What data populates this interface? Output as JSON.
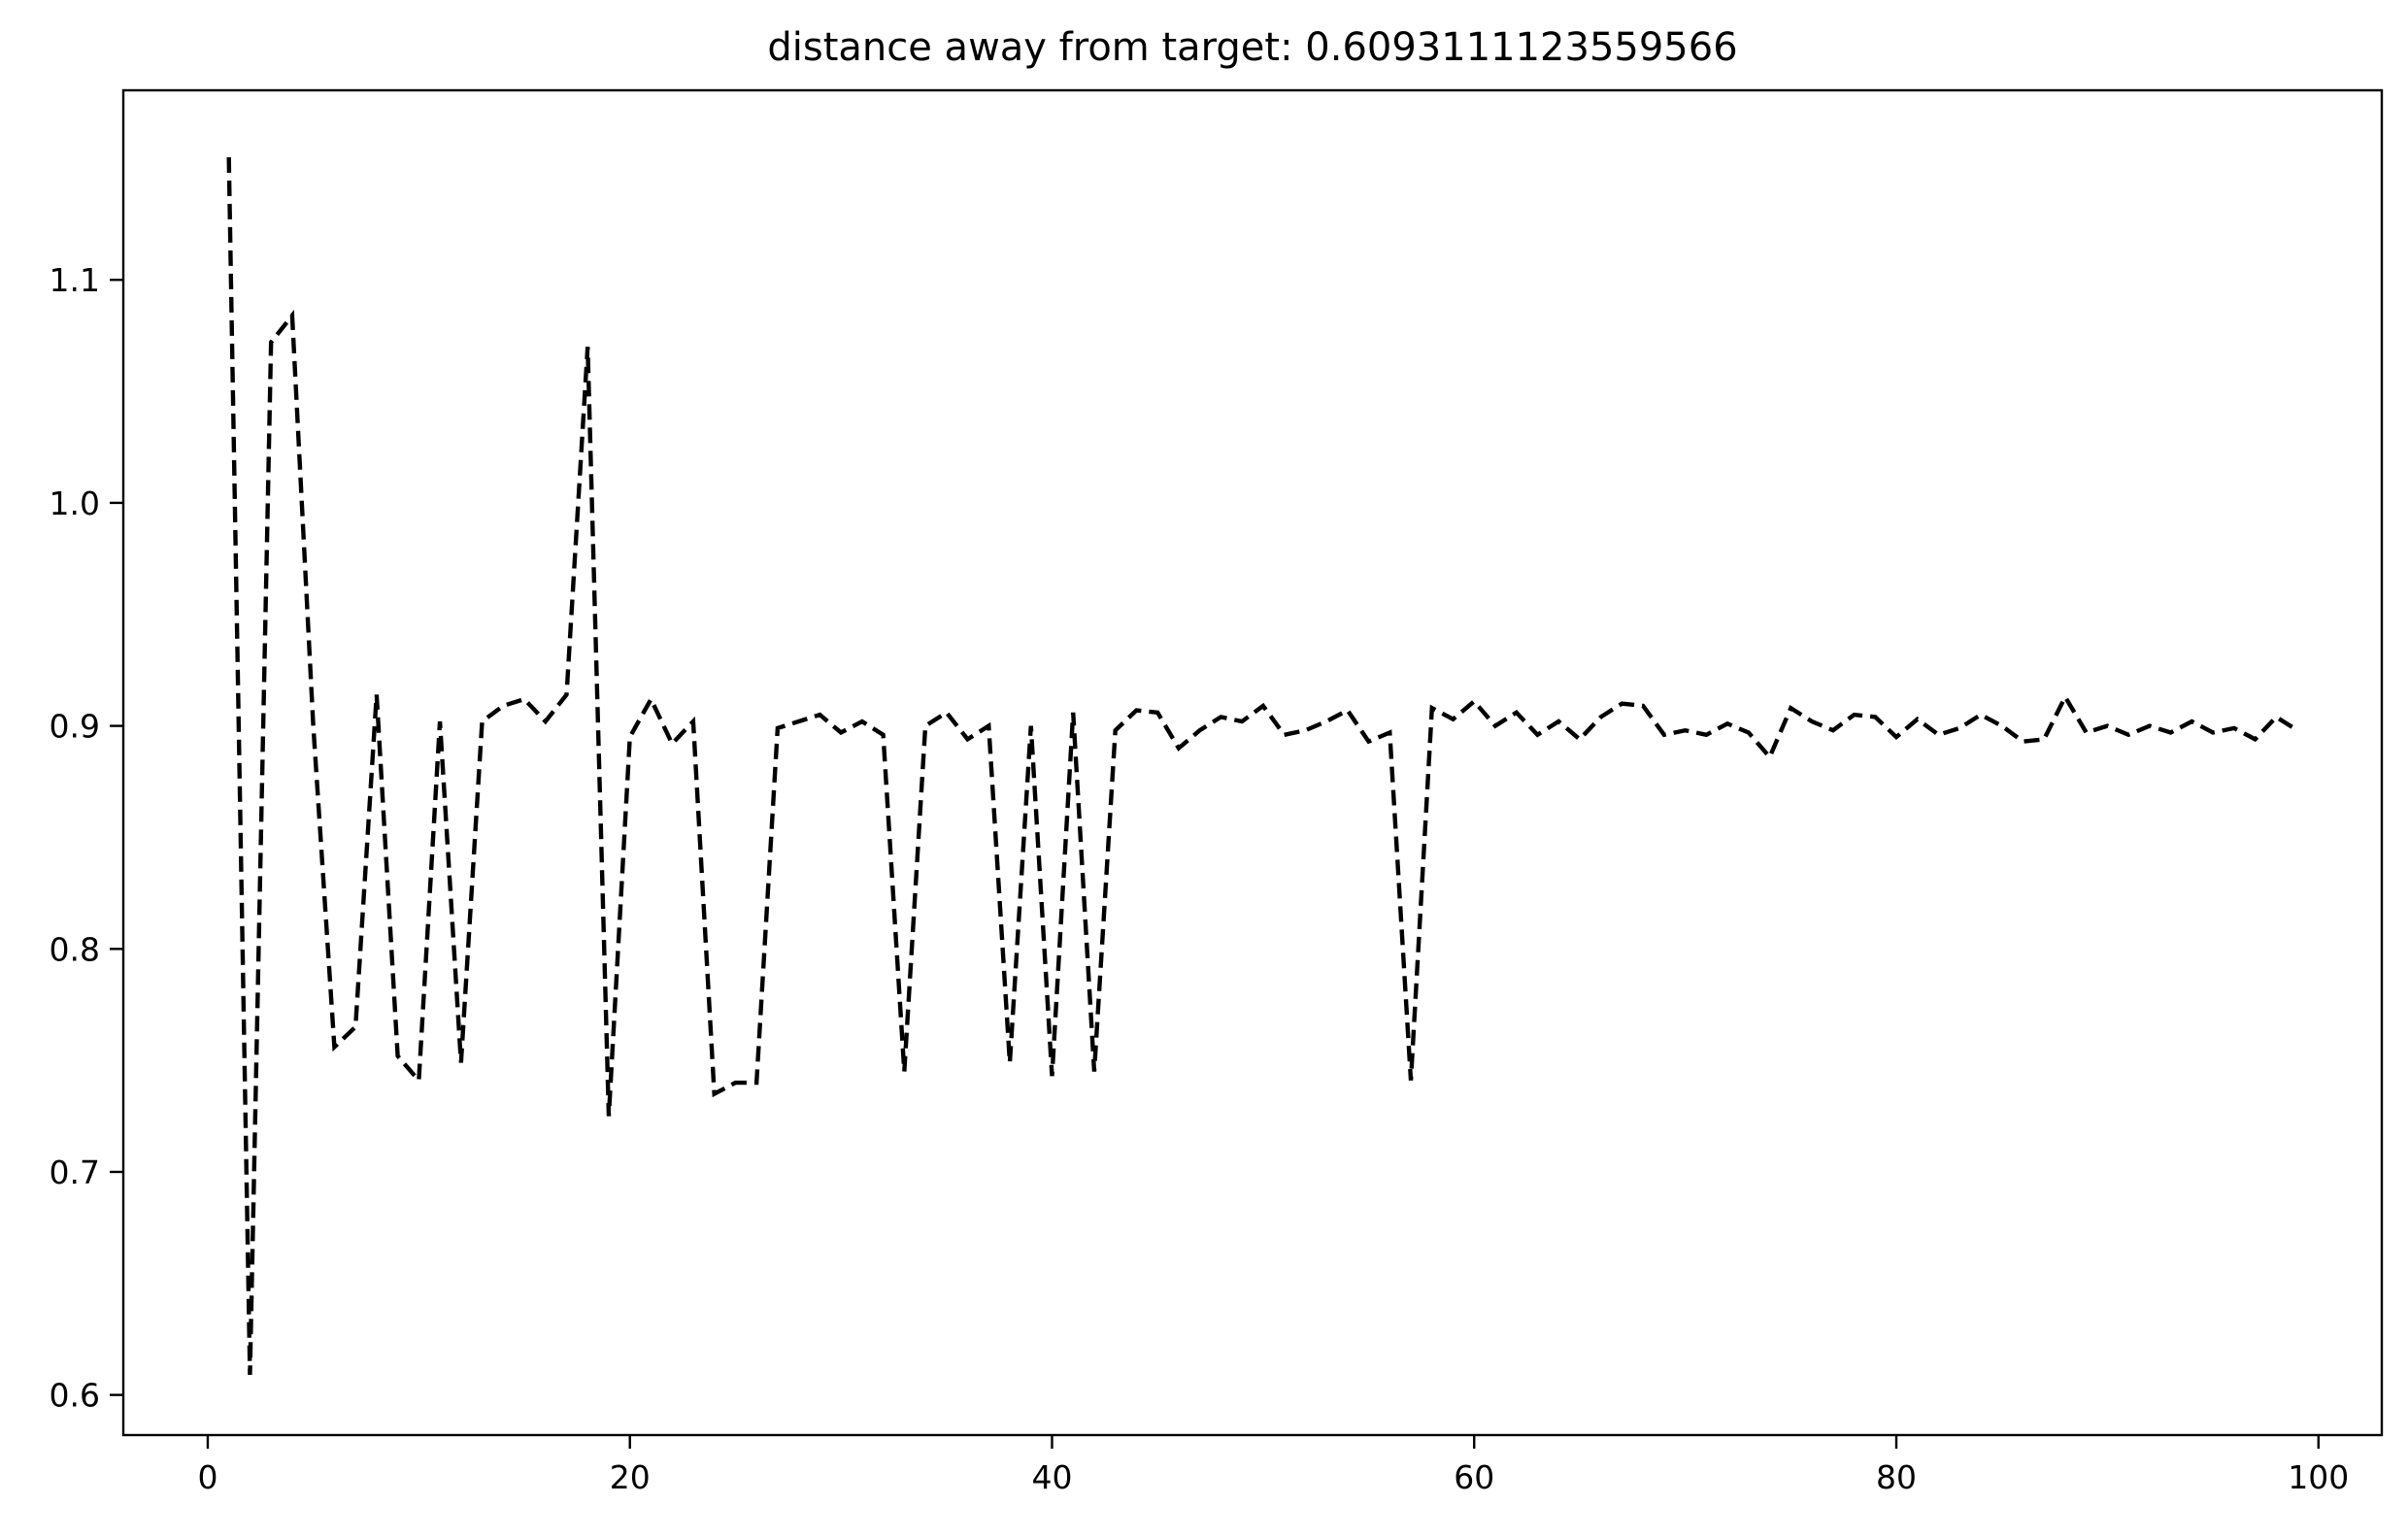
{
  "chart_data": {
    "type": "line",
    "title": "distance away from target: 0.6093111123559566",
    "xlabel": "",
    "ylabel": "",
    "xlim": [
      -4,
      103
    ],
    "ylim": [
      0.582,
      1.185
    ],
    "x_ticks": [
      0,
      20,
      40,
      60,
      80,
      100
    ],
    "y_ticks": [
      0.6,
      0.7,
      0.8,
      0.9,
      1.0,
      1.1
    ],
    "x_tick_labels": [
      "0",
      "20",
      "40",
      "60",
      "80",
      "100"
    ],
    "y_tick_labels": [
      "0.6",
      "0.7",
      "0.8",
      "0.9",
      "1.0",
      "1.1"
    ],
    "grid": false,
    "legend": false,
    "line_color": "#000000",
    "line_style": "dashed",
    "series": [
      {
        "x": [
          1,
          2,
          3,
          4,
          5,
          6,
          7,
          8,
          9,
          10,
          11,
          12,
          13,
          14,
          15,
          16,
          17,
          18,
          19,
          20,
          21,
          22,
          23,
          24,
          25,
          26,
          27,
          28,
          29,
          30,
          31,
          32,
          33,
          34,
          35,
          36,
          37,
          38,
          39,
          40,
          41,
          42,
          43,
          44,
          45,
          46,
          47,
          48,
          49,
          50,
          51,
          52,
          53,
          54,
          55,
          56,
          57,
          58,
          59,
          60,
          61,
          62,
          63,
          64,
          65,
          66,
          67,
          68,
          69,
          70,
          71,
          72,
          73,
          74,
          75,
          76,
          77,
          78,
          79,
          80,
          81,
          82,
          83,
          84,
          85,
          86,
          87,
          88,
          89,
          90,
          91,
          92,
          93,
          94,
          95,
          96,
          97,
          98,
          99
        ],
        "y": [
          1.155,
          0.609,
          1.072,
          1.084,
          0.9,
          0.756,
          0.765,
          0.914,
          0.752,
          0.741,
          0.902,
          0.749,
          0.902,
          0.909,
          0.912,
          0.902,
          0.914,
          1.07,
          0.725,
          0.895,
          0.912,
          0.892,
          0.902,
          0.735,
          0.74,
          0.74,
          0.899,
          0.902,
          0.905,
          0.897,
          0.902,
          0.896,
          0.745,
          0.9,
          0.906,
          0.894,
          0.9,
          0.749,
          0.9,
          0.743,
          0.906,
          0.745,
          0.898,
          0.907,
          0.906,
          0.89,
          0.898,
          0.904,
          0.902,
          0.909,
          0.896,
          0.898,
          0.902,
          0.907,
          0.893,
          0.897,
          0.741,
          0.908,
          0.903,
          0.911,
          0.9,
          0.906,
          0.896,
          0.902,
          0.894,
          0.904,
          0.91,
          0.909,
          0.896,
          0.898,
          0.896,
          0.901,
          0.897,
          0.886,
          0.908,
          0.902,
          0.898,
          0.905,
          0.904,
          0.895,
          0.903,
          0.896,
          0.899,
          0.905,
          0.9,
          0.893,
          0.894,
          0.913,
          0.897,
          0.9,
          0.896,
          0.9,
          0.897,
          0.902,
          0.897,
          0.899,
          0.894,
          0.904,
          0.898
        ]
      }
    ]
  }
}
